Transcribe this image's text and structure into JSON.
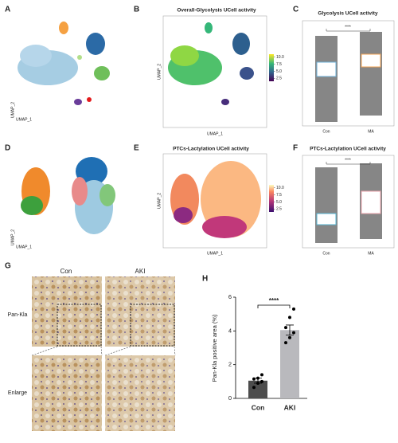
{
  "panels": {
    "A": {
      "label": "A",
      "x_label": "UMAP_1",
      "y_label": "UMAP_2"
    },
    "B": {
      "label": "B",
      "title": "Overall-Glycolysis UCell activity",
      "x_label": "UMAP_1",
      "y_label": "UMAP_2",
      "colorbar_lim": [
        1.5,
        11
      ],
      "colorbar_ticks": [
        {
          "value": 10,
          "label": "10.0"
        },
        7.5,
        {
          "value": 5,
          "label": "5.0"
        },
        2.5
      ]
    },
    "C": {
      "label": "C",
      "title": "Glycolysis UCell activity",
      "categories": [
        "Con",
        "MA"
      ],
      "significance": "****"
    },
    "D": {
      "label": "D",
      "x_label": "UMAP_1",
      "y_label": "UMAP_2"
    },
    "E": {
      "label": "E",
      "title": "PTCs-Lactylation UCell activity",
      "x_label": "UMAP_1",
      "y_label": "UMAP_2",
      "colorbar_lim": [
        1.5,
        11
      ],
      "colorbar_ticks": [
        {
          "value": 10,
          "label": "10.0"
        },
        7.5,
        {
          "value": 5,
          "label": "5.0"
        },
        2.5
      ]
    },
    "F": {
      "label": "F",
      "title": "PTCs-Lactylation UCell activity",
      "categories": [
        "Con",
        "MA"
      ],
      "significance": "****"
    },
    "G": {
      "label": "G",
      "columns": [
        "Con",
        "AKI"
      ],
      "rows": [
        "Pan-Kla",
        "Enlarge"
      ]
    },
    "H": {
      "label": "H",
      "type": "bar",
      "y_label": "Pan-Kla positive area (%)",
      "categories": [
        "Con",
        "AKI"
      ],
      "values": [
        1.05,
        4.05
      ],
      "errors": [
        0.15,
        0.3
      ],
      "points": [
        [
          0.65,
          0.9,
          1.0,
          1.15,
          1.2,
          1.4
        ],
        [
          3.3,
          3.6,
          3.9,
          4.2,
          4.8,
          5.3
        ]
      ],
      "colors": [
        "#4d4d4d",
        "#b9b9bd"
      ],
      "ylim": [
        0,
        6
      ],
      "yticks": [
        0,
        2,
        4,
        6
      ],
      "significance": "****"
    }
  }
}
